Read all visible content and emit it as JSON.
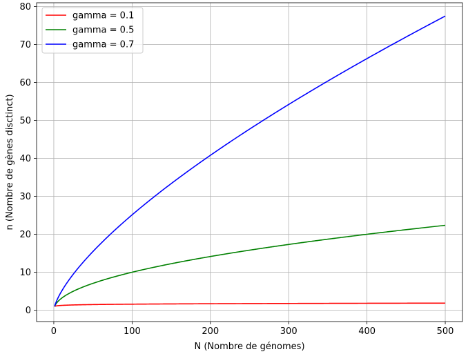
{
  "chart_data": {
    "type": "line",
    "title": "",
    "xlabel": "N (Nombre de génomes)",
    "ylabel": "n (Nombre de gènes disctinct)",
    "xlim": [
      -22,
      522
    ],
    "ylim": [
      -3,
      81
    ],
    "x_ticks": [
      0,
      100,
      200,
      300,
      400,
      500
    ],
    "y_ticks": [
      0,
      10,
      20,
      30,
      40,
      50,
      60,
      70,
      80
    ],
    "grid": true,
    "legend_position": "top-left",
    "formula": "n = N^gamma",
    "x_start": 1,
    "x_end": 500,
    "series": [
      {
        "name": "gamma = 0.1",
        "gamma": 0.1,
        "color": "#ff0000"
      },
      {
        "name": "gamma = 0.5",
        "gamma": 0.5,
        "color": "#008000"
      },
      {
        "name": "gamma = 0.7",
        "gamma": 0.7,
        "color": "#0000ff"
      }
    ]
  }
}
